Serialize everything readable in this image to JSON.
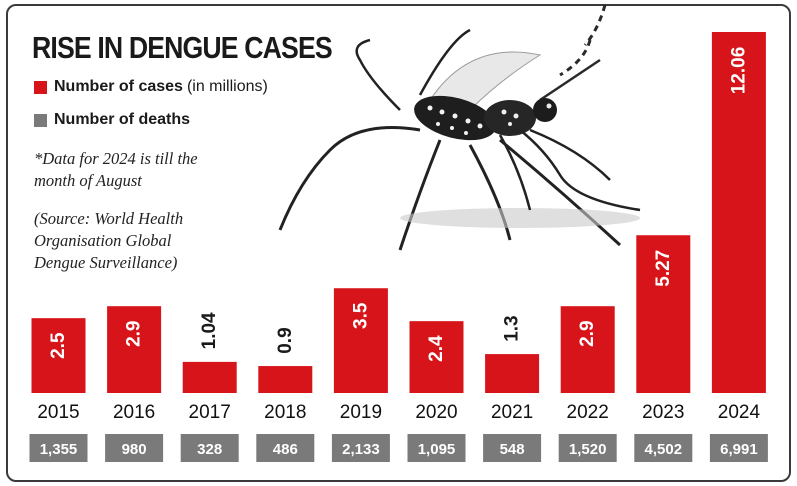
{
  "title": "RISE IN DENGUE CASES",
  "legend": {
    "cases_label": "Number of cases",
    "cases_unit": "(in millions)",
    "deaths_label": "Number of deaths"
  },
  "notes": {
    "data_note_line1": "*Data for 2024 is till the",
    "data_note_line2": "month of August",
    "source_line1": "(Source: World Health",
    "source_line2": "Organisation Global",
    "source_line3": "Dengue Surveillance)"
  },
  "colors": {
    "cases": "#d7141a",
    "deaths": "#7a7a7a",
    "title": "#1a1a1a"
  },
  "chart_data": {
    "type": "bar",
    "title": "RISE IN DENGUE CASES",
    "categories": [
      "2015",
      "2016",
      "2017",
      "2018",
      "2019",
      "2020",
      "2021",
      "2022",
      "2023",
      "2024"
    ],
    "series": [
      {
        "name": "Number of cases",
        "unit": "in millions",
        "values": [
          2.5,
          2.9,
          1.04,
          0.9,
          3.5,
          2.4,
          1.3,
          2.9,
          5.27,
          12.06
        ],
        "labels": [
          "2.5",
          "2.9",
          "1.04",
          "0.9",
          "3.5",
          "2.4",
          "1.3",
          "2.9",
          "5.27",
          "12.06"
        ]
      },
      {
        "name": "Number of deaths",
        "values": [
          1355,
          980,
          328,
          486,
          2133,
          1095,
          548,
          1520,
          4502,
          6991
        ],
        "labels": [
          "1,355",
          "980",
          "328",
          "486",
          "2,133",
          "1,095",
          "548",
          "1,520",
          "4,502",
          "6,991"
        ]
      }
    ],
    "ylim": [
      0,
      12.06
    ],
    "grid": false,
    "legend_placement": "top-left"
  }
}
